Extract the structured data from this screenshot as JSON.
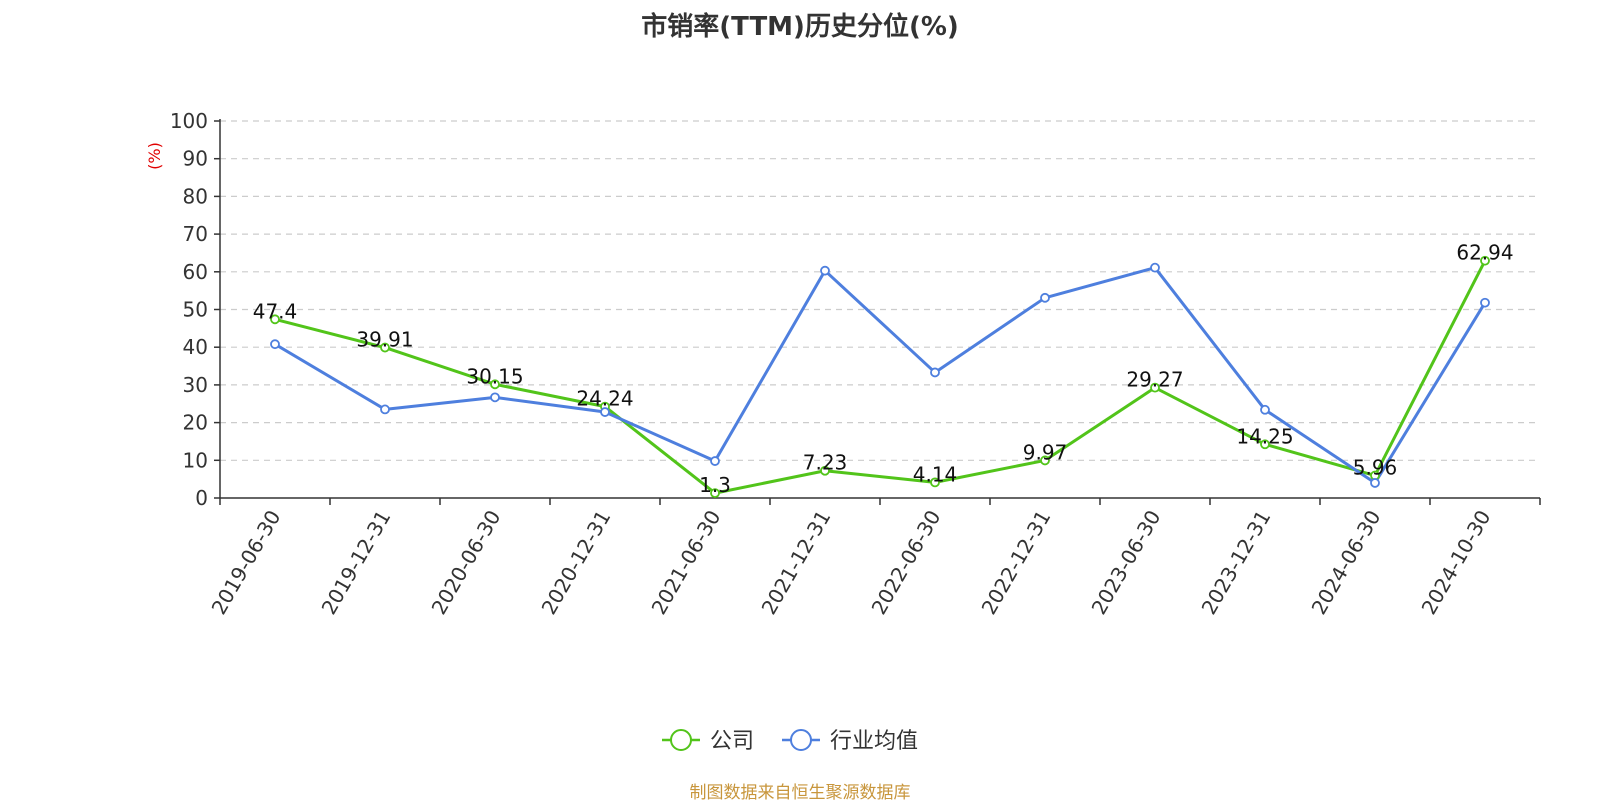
{
  "chart_data": {
    "type": "line",
    "title": "市销率(TTM)历史分位(%)",
    "ylabel": "(%)",
    "ylim": [
      0,
      100
    ],
    "yticks": [
      0,
      10,
      20,
      30,
      40,
      50,
      60,
      70,
      80,
      90,
      100
    ],
    "grid": true,
    "legend_position": "bottom",
    "categories": [
      "2019-06-30",
      "2019-12-31",
      "2020-06-30",
      "2020-12-31",
      "2021-06-30",
      "2021-12-31",
      "2022-06-30",
      "2022-12-31",
      "2023-06-30",
      "2023-12-31",
      "2024-06-30",
      "2024-10-30"
    ],
    "series": [
      {
        "name": "公司",
        "color": "#52c41a",
        "show_labels": true,
        "values": [
          47.4,
          39.91,
          30.15,
          24.24,
          1.3,
          7.23,
          4.14,
          9.97,
          29.27,
          14.25,
          5.96,
          62.94
        ]
      },
      {
        "name": "行业均值",
        "color": "#4e7fde",
        "show_labels": false,
        "values": [
          40.8,
          23.5,
          26.7,
          22.8,
          9.8,
          60.3,
          33.3,
          53.1,
          61.1,
          23.4,
          4.0,
          51.8
        ]
      }
    ]
  },
  "source_text": "制图数据来自恒生聚源数据库",
  "source_color": "#c8963c",
  "ylabel_color": "#e00000"
}
